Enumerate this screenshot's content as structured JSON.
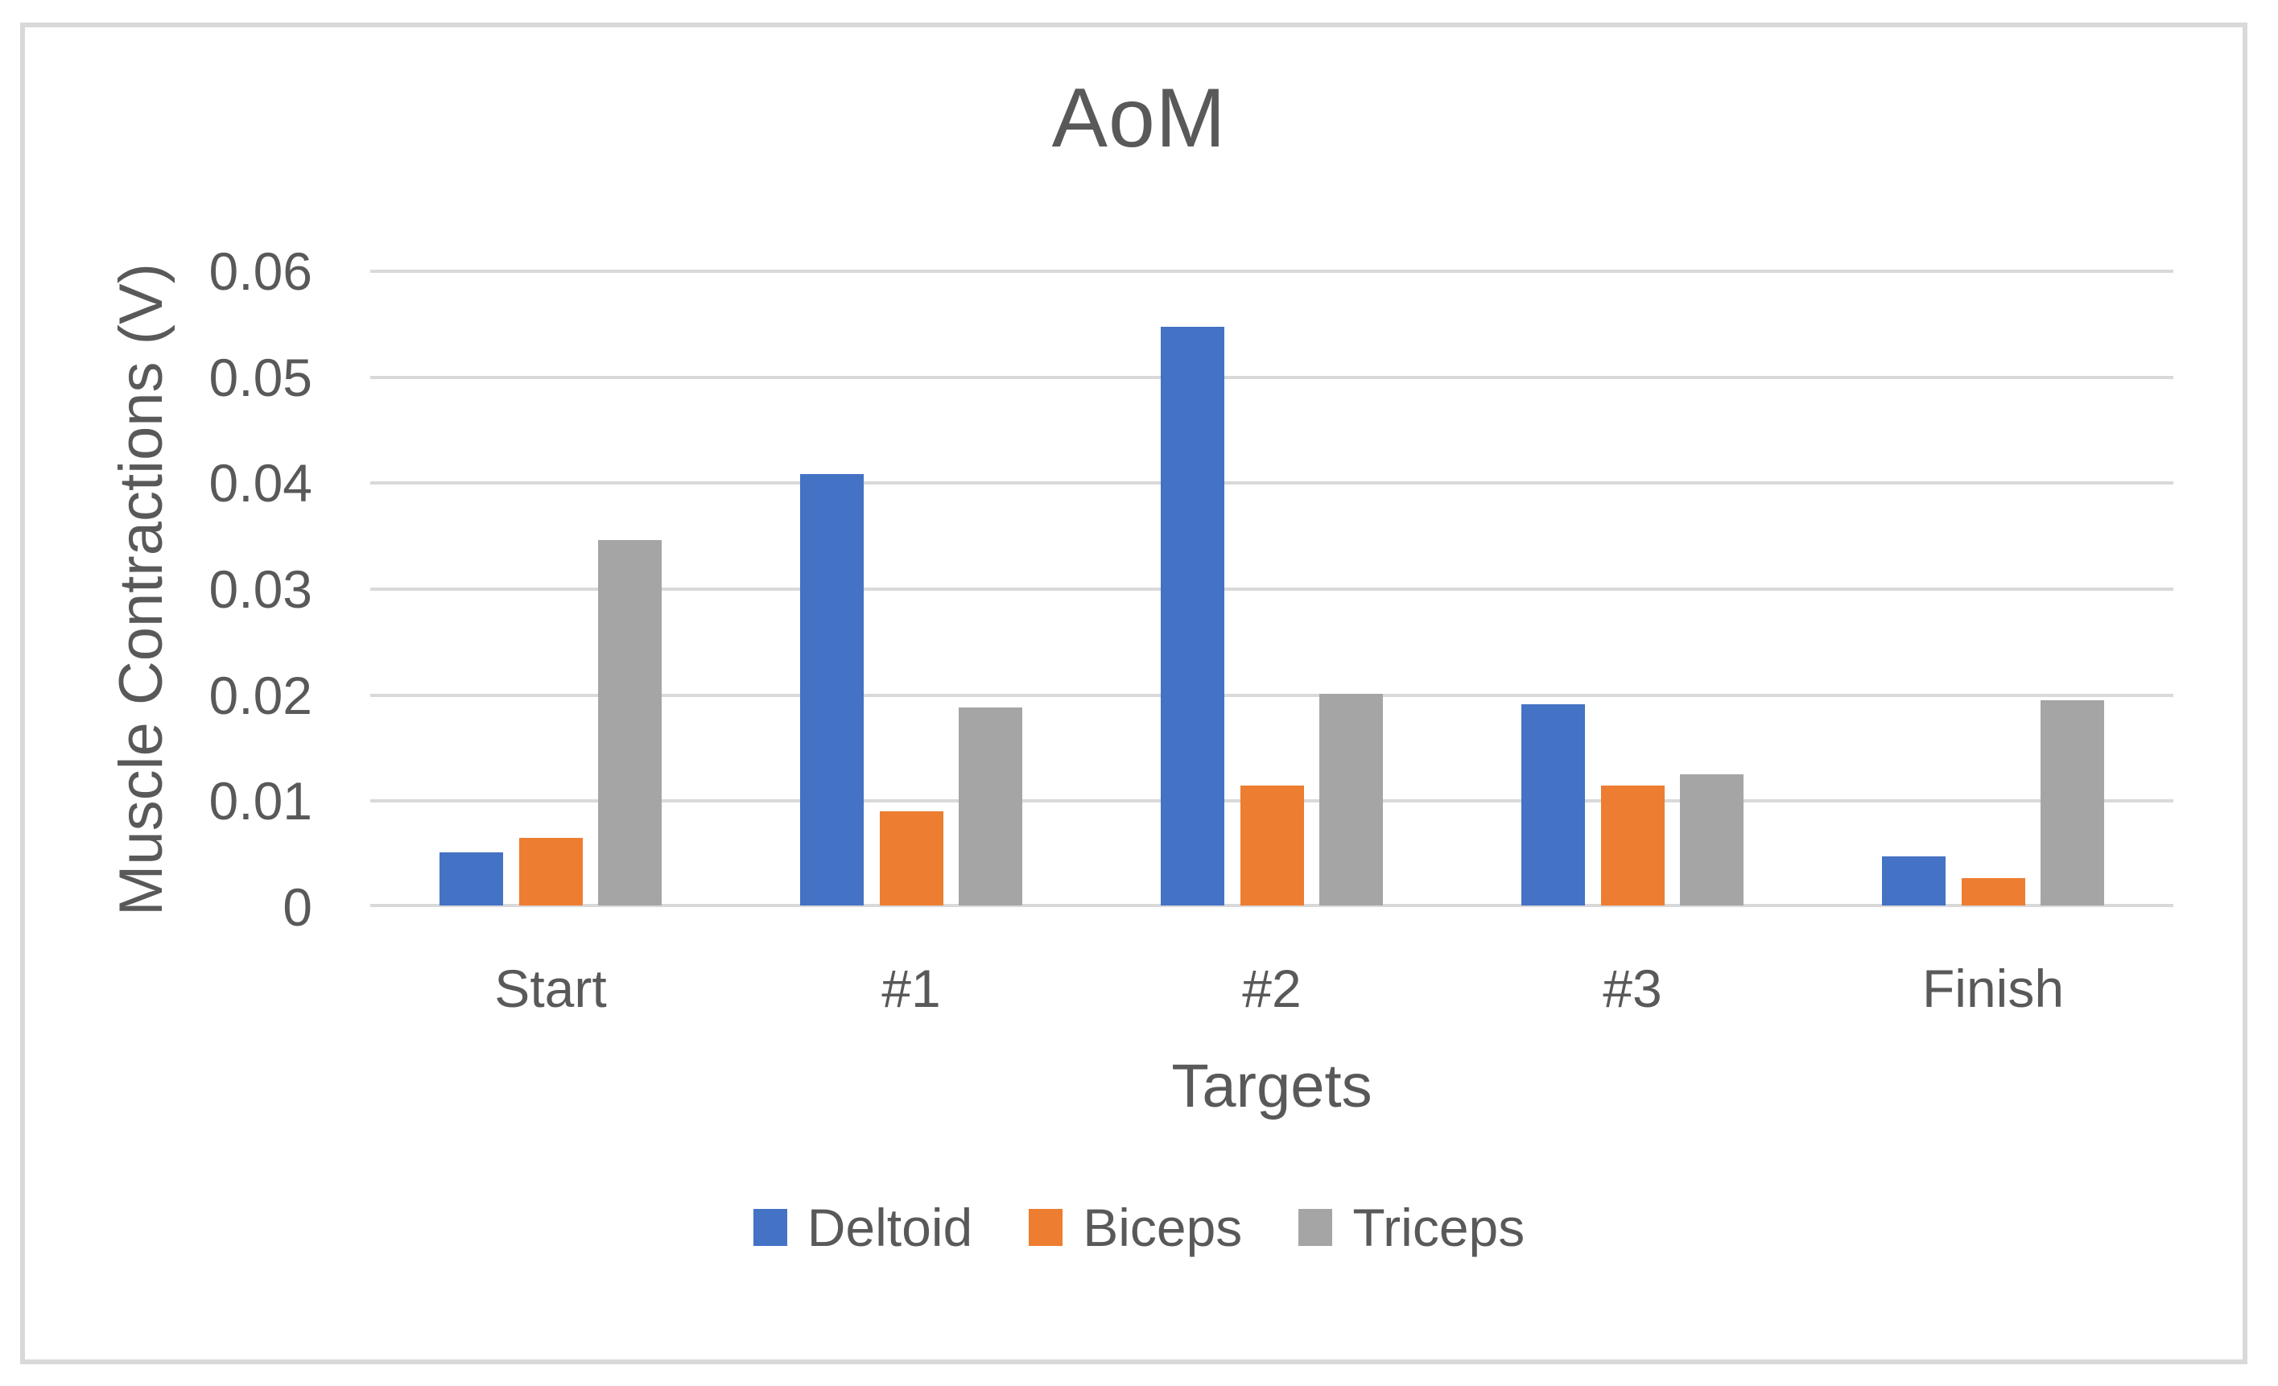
{
  "window": {
    "background_color": "#FFFFFF",
    "frame_border_color": "#D9D9D9"
  },
  "chart_data": {
    "type": "bar",
    "title": "AoM",
    "xlabel": "Targets",
    "ylabel": "Muscle Contractions (V)",
    "categories": [
      "Start",
      "#1",
      "#2",
      "#3",
      "Finish"
    ],
    "series": [
      {
        "name": "Deltoid",
        "color": "#4472C4",
        "values": [
          0.005,
          0.0407,
          0.0546,
          0.019,
          0.0046
        ]
      },
      {
        "name": "Biceps",
        "color": "#ED7D31",
        "values": [
          0.0064,
          0.0089,
          0.0113,
          0.0113,
          0.0026
        ]
      },
      {
        "name": "Triceps",
        "color": "#A5A5A5",
        "values": [
          0.0345,
          0.0187,
          0.02,
          0.0124,
          0.0194
        ]
      }
    ],
    "ylim": [
      0,
      0.06
    ],
    "yticks": [
      {
        "value": 0.06,
        "label": "0.06"
      },
      {
        "value": 0.05,
        "label": "0.05"
      },
      {
        "value": 0.04,
        "label": "0.04"
      },
      {
        "value": 0.03,
        "label": "0.03"
      },
      {
        "value": 0.02,
        "label": "0.02"
      },
      {
        "value": 0.01,
        "label": "0.01"
      },
      {
        "value": 0,
        "label": "0"
      }
    ],
    "grid": true,
    "legend_position": "bottom",
    "text_color": "#595959",
    "gridline_color": "#D9D9D9"
  }
}
